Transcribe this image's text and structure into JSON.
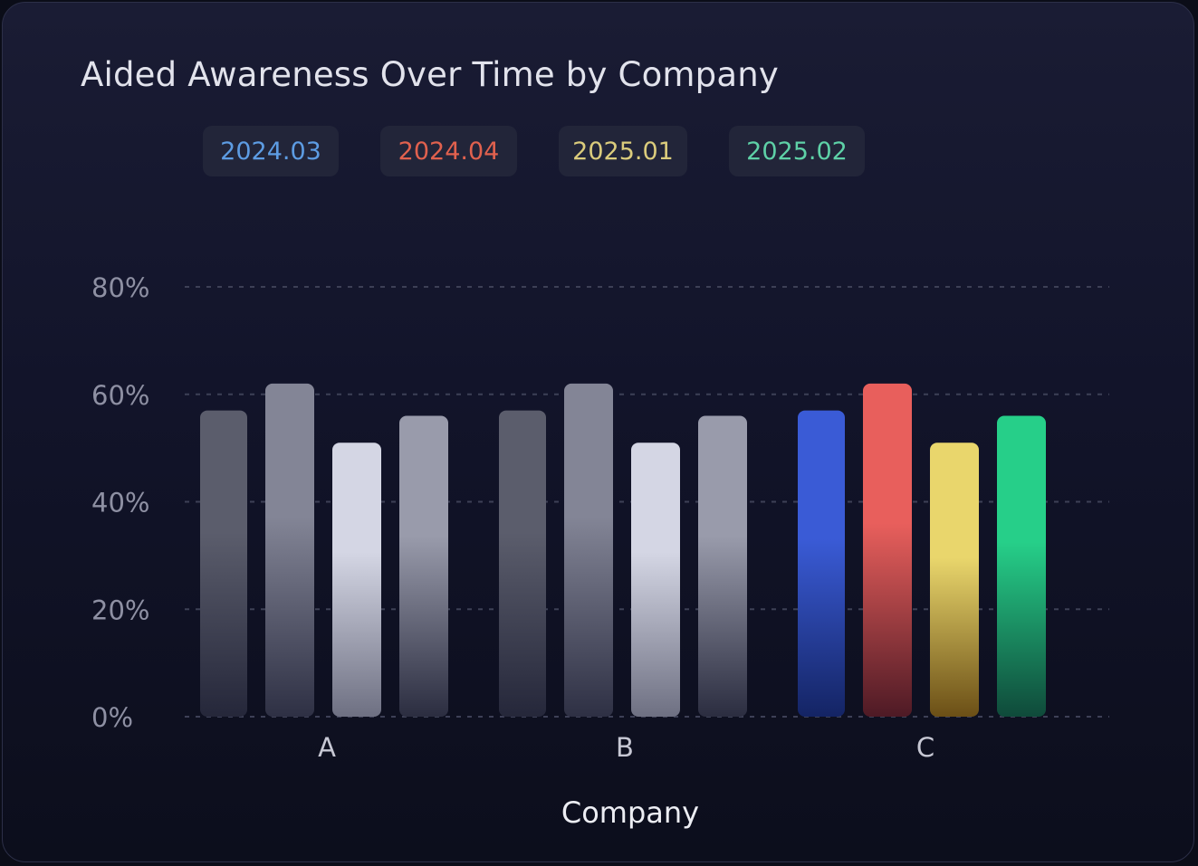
{
  "chart_data": {
    "type": "bar",
    "title": "Aided Awareness Over Time by Company",
    "xlabel": "Company",
    "ylabel": "",
    "categories": [
      "A",
      "B",
      "C"
    ],
    "series": [
      {
        "name": "2024.03",
        "values": [
          57,
          57,
          57
        ]
      },
      {
        "name": "2024.04",
        "values": [
          62,
          62,
          62
        ]
      },
      {
        "name": "2025.01",
        "values": [
          51,
          51,
          51
        ]
      },
      {
        "name": "2025.02",
        "values": [
          56,
          56,
          56
        ]
      }
    ],
    "ylim": [
      0,
      80
    ],
    "yticks": [
      "0%",
      "20%",
      "40%",
      "60%",
      "80%"
    ],
    "ytick_values": [
      0,
      20,
      40,
      60,
      80
    ],
    "grid": true,
    "legend_position": "top"
  },
  "colors": {
    "legend_text": [
      "#5d9ce3",
      "#e1614e",
      "#dbcc7c",
      "#5ed1a7"
    ],
    "highlight_bars": [
      {
        "top": "#3a5bd6",
        "bottom": "#142464"
      },
      {
        "top": "#e85f5c",
        "bottom": "#4e1a25"
      },
      {
        "top": "#e9d66c",
        "bottom": "#6b4f16"
      },
      {
        "top": "#26cf89",
        "bottom": "#0f4a3a"
      }
    ],
    "muted_bars": [
      {
        "top": "#5b5d6c",
        "bottom": "#25273a"
      },
      {
        "top": "#838596",
        "bottom": "#2e3044"
      },
      {
        "top": "#d4d6e4",
        "bottom": "#6e7082"
      },
      {
        "top": "#999bab",
        "bottom": "#2b2d40"
      }
    ],
    "highlight_category": "C"
  }
}
